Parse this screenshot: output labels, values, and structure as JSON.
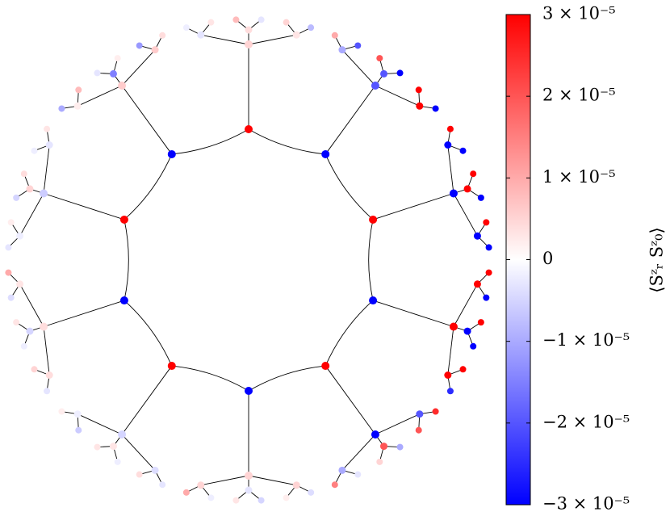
{
  "chart_data": {
    "type": "lattice",
    "rings": [
      {
        "values": [
          3e-05,
          -3e-05,
          3e-05,
          -3e-05,
          3e-05,
          -3e-05,
          3e-05,
          -3e-05,
          3e-05,
          -3e-05
        ]
      },
      {
        "values": [
          5e-06,
          -2e-05,
          -3e-05,
          3e-05,
          -3e-05,
          5e-06,
          -5e-06,
          4e-06,
          -6e-06,
          6e-06
        ]
      },
      {
        "values": [
          4e-06,
          3e-06,
          -1e-05,
          -2e-05,
          3e-05,
          -3e-05,
          3e-05,
          -3e-05,
          3e-05,
          -3e-05,
          3e-05,
          -2e-05,
          2e-05,
          -1e-05,
          5e-06,
          -3e-06,
          5e-06,
          -4e-06,
          3e-06,
          -2e-06,
          4e-06,
          -5e-06,
          3e-06,
          -2e-06,
          5e-06,
          -3e-06,
          2e-06,
          -1.5e-05,
          6e-06,
          -3e-06
        ]
      },
      {
        "values": [
          8e-06,
          -3e-06,
          5e-06,
          -8e-06,
          1e-05,
          -2e-05,
          2e-05,
          -3e-05,
          3e-05,
          -3e-05,
          3e-05,
          -3e-05,
          3e-05,
          -3e-05,
          3e-05,
          -3e-05,
          3e-05,
          -3e-05,
          3e-05,
          -3e-05,
          3e-05,
          -2.5e-05,
          2.5e-05,
          2e-05,
          -1e-05,
          5e-06,
          -3e-06,
          1.5e-05,
          -4e-06,
          2e-06,
          -5e-06,
          3e-06,
          -2e-06,
          1e-05,
          -3e-06,
          4e-06,
          -2e-06,
          3e-06,
          -6e-06,
          2e-06,
          -3e-06,
          5e-06,
          -2e-06,
          3e-06,
          -4e-06,
          1e-05,
          -3e-06,
          2e-06,
          -5e-06,
          4e-06,
          -2e-06,
          3e-06,
          -1e-05,
          8e-06,
          -3e-06,
          2e-06,
          -1.2e-05,
          4e-06,
          -2e-06,
          3e-06
        ]
      }
    ],
    "colorbar": {
      "label": "⟨Sᶻᵣ Sᶻ₀⟩",
      "colormap": "bwr",
      "clim": [
        -3e-05,
        3e-05
      ],
      "ticks": [
        {
          "value": 3e-05,
          "label": "3 × 10⁻⁵"
        },
        {
          "value": 2e-05,
          "label": "2 × 10⁻⁵"
        },
        {
          "value": 1e-05,
          "label": "1 × 10⁻⁵"
        },
        0,
        {
          "value": -1e-05,
          "label": "−1 × 10⁻⁵"
        },
        {
          "value": -2e-05,
          "label": "−2 × 10⁻⁵"
        },
        {
          "value": -3e-05,
          "label": "−3 × 10⁻⁵"
        }
      ]
    }
  }
}
